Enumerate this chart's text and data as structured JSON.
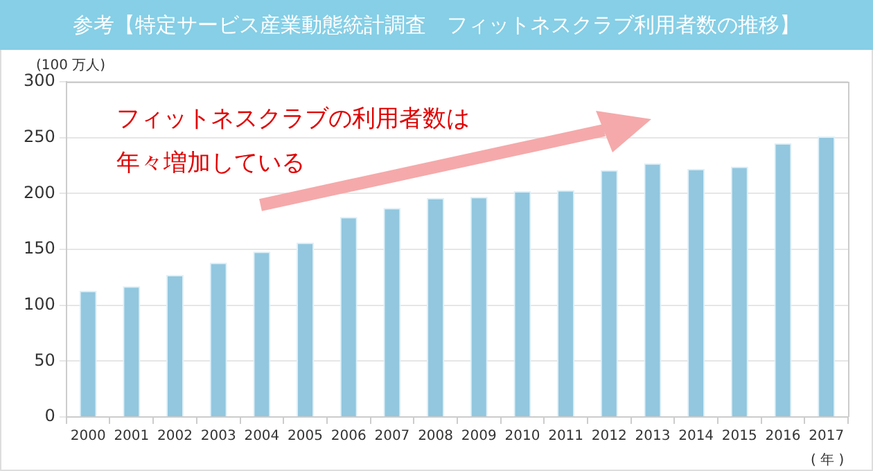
{
  "chart_data": {
    "type": "bar",
    "title": "参考【特定サービス産業動態統計調査　フィットネスクラブ利用者数の推移】",
    "ylabel": "(100 万人)",
    "xlabel": "( 年 )",
    "annotations": [
      "フィットネスクラブの利用者数は年々増加している"
    ],
    "categories": [
      "2000",
      "2001",
      "2002",
      "2003",
      "2004",
      "2005",
      "2006",
      "2007",
      "2008",
      "2009",
      "2010",
      "2011",
      "2012",
      "2013",
      "2014",
      "2015",
      "2016",
      "2017"
    ],
    "values": [
      113,
      117,
      127,
      138,
      148,
      156,
      179,
      187,
      196,
      197,
      202,
      203,
      221,
      227,
      222,
      224,
      245,
      251
    ],
    "color": "#92c7df",
    "ylim": [
      0,
      300
    ],
    "yticks": [
      0,
      50,
      100,
      150,
      200,
      250,
      300
    ],
    "grid": "y"
  }
}
